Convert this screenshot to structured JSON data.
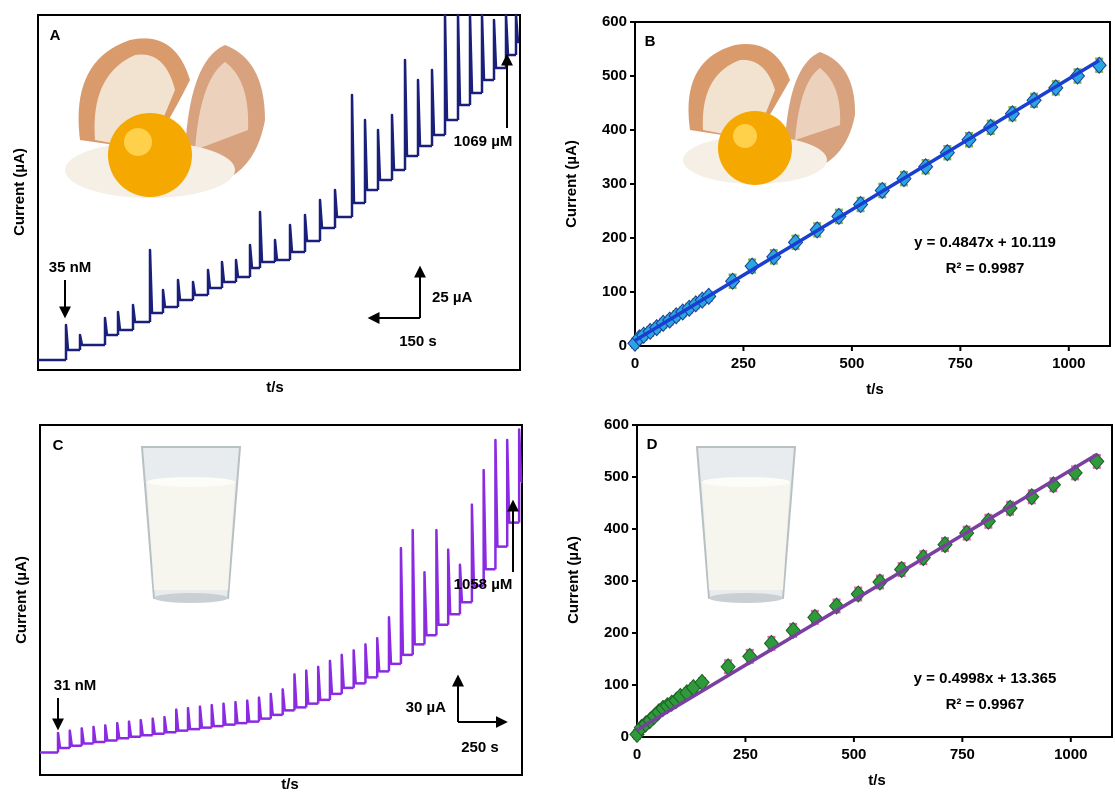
{
  "chart_data": [
    {
      "type": "amperometric",
      "label": "A",
      "y_label": "Current (µA)",
      "x_label": "t/s",
      "color": "#1a1f7a",
      "xlim": [
        0,
        1446
      ],
      "ylim": [
        0,
        177.5
      ],
      "x": [
        0,
        84,
        126,
        201,
        240,
        285,
        336,
        375,
        420,
        465,
        510,
        552,
        594,
        636,
        666,
        711,
        756,
        801,
        846,
        891,
        942,
        981,
        1020,
        1062,
        1101,
        1140,
        1182,
        1221,
        1260,
        1296,
        1332,
        1368,
        1404,
        1434
      ],
      "values": [
        5,
        10,
        12.5,
        17.5,
        20,
        24,
        28.5,
        31.5,
        35,
        37.5,
        41,
        44,
        46.5,
        51,
        54,
        55,
        59,
        64.5,
        71,
        76.5,
        83.5,
        90,
        95,
        100,
        107,
        112,
        117.5,
        125,
        132.5,
        138.5,
        145,
        151,
        157.5,
        164
      ],
      "peaks": [
        null,
        22.5,
        17.5,
        26,
        29,
        32.5,
        60,
        40,
        45,
        44,
        50,
        54,
        55,
        62.5,
        79,
        65,
        72.5,
        77.5,
        85,
        90,
        137.5,
        125,
        120,
        127.5,
        155,
        145,
        150,
        177.5,
        177.5,
        177.5,
        177.5,
        175,
        177.5,
        177.5
      ],
      "scale_bar": {
        "y": {
          "value": 25,
          "label": "25 µA"
        },
        "x": {
          "value": 150,
          "label": "150 s"
        }
      },
      "annotations": [
        "35 nM",
        "1069 µM"
      ]
    },
    {
      "type": "scatter",
      "label": "B",
      "y_label": "Current (µA)",
      "x_label": "t/s",
      "xlim": [
        0,
        1095
      ],
      "ylim": [
        0,
        600
      ],
      "xticks": [
        0,
        250,
        500,
        750,
        1000
      ],
      "yticks": [
        0,
        100,
        200,
        300,
        400,
        500,
        600
      ],
      "marker_color": "#2aa6e0",
      "marker_edge": "#1a3a9a",
      "error_color": "#7ab648",
      "fit_color": "#1a3fd0",
      "x": [
        0,
        10,
        20,
        35,
        50,
        65,
        80,
        95,
        110,
        125,
        140,
        155,
        170,
        225,
        270,
        320,
        370,
        420,
        470,
        520,
        570,
        620,
        670,
        720,
        770,
        820,
        870,
        920,
        970,
        1020,
        1070
      ],
      "values": [
        5,
        15,
        20,
        27,
        34,
        42,
        48,
        56,
        63,
        70,
        78,
        85,
        92,
        120,
        148,
        165,
        192,
        215,
        240,
        262,
        288,
        310,
        332,
        358,
        382,
        405,
        430,
        455,
        478,
        500,
        520
      ],
      "errors": [
        8,
        8,
        8,
        8,
        8,
        8,
        8,
        8,
        8,
        8,
        8,
        8,
        8,
        12,
        12,
        12,
        12,
        12,
        12,
        12,
        12,
        12,
        12,
        12,
        12,
        12,
        12,
        12,
        12,
        12,
        12
      ],
      "fit": {
        "slope": 0.4847,
        "intercept": 10.119,
        "label": "y = 0.4847x + 10.119",
        "r2_label": "R² = 0.9987"
      }
    },
    {
      "type": "amperometric",
      "label": "C",
      "y_label": "Current (µA)",
      "x_label": "t/s",
      "color": "#8a2be2",
      "xlim": [
        0,
        2540
      ],
      "ylim": [
        0,
        233
      ],
      "x": [
        0,
        95,
        157,
        220,
        282,
        344,
        407,
        469,
        531,
        594,
        656,
        718,
        780,
        843,
        905,
        967,
        1030,
        1092,
        1154,
        1216,
        1279,
        1341,
        1403,
        1466,
        1528,
        1590,
        1653,
        1715,
        1777,
        1839,
        1902,
        1964,
        2026,
        2089,
        2151,
        2213,
        2276,
        2338,
        2400,
        2462,
        2525
      ],
      "values": [
        15,
        18,
        19.5,
        21,
        22,
        23,
        24.5,
        25.5,
        26.5,
        27.5,
        28.5,
        29.5,
        30.5,
        31.5,
        32.5,
        33.5,
        34.5,
        35.5,
        37.5,
        40,
        43,
        45,
        47.5,
        50,
        54,
        58,
        61,
        65,
        69,
        74,
        80,
        87,
        93,
        100,
        107,
        115,
        126,
        137,
        152,
        168,
        195
      ],
      "peaks": [
        null,
        28,
        29.5,
        31,
        32,
        33,
        34.5,
        35.5,
        36.5,
        37.5,
        38.5,
        43.5,
        44.5,
        45.5,
        46.5,
        47.5,
        48.5,
        49.5,
        51.5,
        54,
        57,
        67,
        69.5,
        72,
        76,
        80,
        83,
        87,
        91,
        105,
        151,
        163,
        135,
        163,
        150,
        140,
        180,
        203,
        223,
        223,
        230
      ],
      "scale_bar": {
        "y": {
          "value": 30,
          "label": "30 µA"
        },
        "x": {
          "value": 250,
          "label": "250 s"
        }
      },
      "annotations": [
        "31 nM",
        "1058 µM"
      ]
    },
    {
      "type": "scatter",
      "label": "D",
      "y_label": "Current (µA)",
      "x_label": "t/s",
      "xlim": [
        0,
        1095
      ],
      "ylim": [
        0,
        600
      ],
      "xticks": [
        0,
        250,
        500,
        750,
        1000
      ],
      "yticks": [
        0,
        100,
        200,
        300,
        400,
        500,
        600
      ],
      "marker_color": "#2e9a3a",
      "marker_edge": "#1c5e22",
      "error_color": "#e060c0",
      "fit_color": "#7a3fa0",
      "x": [
        0,
        10,
        20,
        30,
        40,
        50,
        60,
        70,
        80,
        90,
        100,
        115,
        130,
        150,
        210,
        260,
        310,
        360,
        410,
        460,
        510,
        560,
        610,
        660,
        710,
        760,
        810,
        860,
        910,
        960,
        1010,
        1060
      ],
      "values": [
        5,
        18,
        25,
        32,
        40,
        48,
        55,
        60,
        65,
        70,
        78,
        85,
        95,
        105,
        135,
        155,
        180,
        205,
        230,
        252,
        275,
        298,
        322,
        345,
        370,
        392,
        415,
        440,
        462,
        485,
        508,
        530
      ],
      "errors": [
        8,
        8,
        8,
        8,
        8,
        8,
        8,
        8,
        8,
        8,
        8,
        8,
        8,
        8,
        12,
        12,
        12,
        12,
        12,
        12,
        12,
        12,
        12,
        12,
        12,
        12,
        12,
        12,
        12,
        12,
        12,
        12
      ],
      "fit": {
        "slope": 0.4998,
        "intercept": 13.365,
        "label": "y = 0.4998x + 13.365",
        "r2_label": "R² = 0.9967"
      }
    }
  ]
}
